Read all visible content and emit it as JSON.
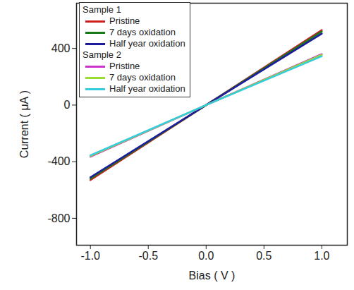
{
  "chart_data": {
    "type": "line",
    "x_label": "Bias ( V )",
    "y_label": "Current ( μA )",
    "xlim": [
      -1.12,
      1.22
    ],
    "ylim": [
      -990,
      720
    ],
    "xticks": [
      {
        "value": -1,
        "label": "-1.0"
      },
      {
        "value": -0.5,
        "label": "-0.5"
      },
      {
        "value": 0,
        "label": "0.0"
      },
      {
        "value": 0.5,
        "label": "0.5"
      },
      {
        "value": 1,
        "label": "1.0"
      }
    ],
    "yticks": [
      {
        "value": -800,
        "label": "-800"
      },
      {
        "value": -400,
        "label": "-400"
      },
      0,
      400
    ],
    "legend": "upper left",
    "x": [
      -1,
      0,
      1
    ],
    "series": [
      {
        "group": "Sample 1",
        "name": "Pristine",
        "color": "#cc2020",
        "values": [
          -530,
          0,
          530
        ]
      },
      {
        "group": "Sample 1",
        "name": "7 days oxidation",
        "color": "#1a7a1a",
        "values": [
          -520,
          0,
          520
        ]
      },
      {
        "group": "Sample 1",
        "name": "Half year oxidation",
        "color": "#1c1c9c",
        "values": [
          -510,
          0,
          505
        ]
      },
      {
        "group": "Sample 2",
        "name": "Pristine",
        "color": "#cc33cc",
        "values": [
          -365,
          0,
          360
        ]
      },
      {
        "group": "Sample 2",
        "name": "7 days oxidation",
        "color": "#99dd33",
        "values": [
          -360,
          0,
          355
        ]
      },
      {
        "group": "Sample 2",
        "name": "Half year oxidation",
        "color": "#33ccdd",
        "values": [
          -355,
          0,
          345
        ]
      }
    ]
  }
}
